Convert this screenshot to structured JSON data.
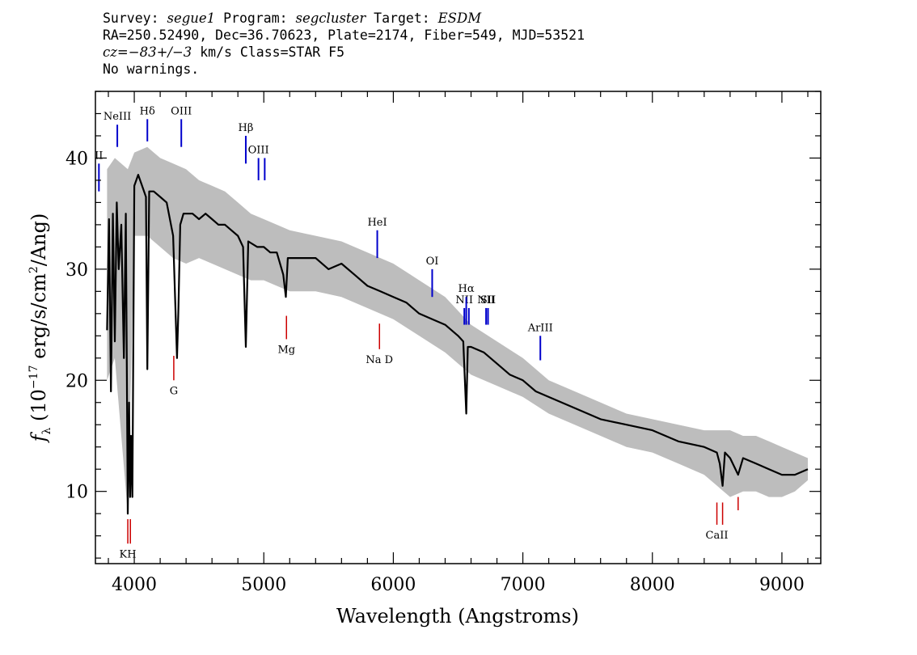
{
  "header": {
    "line1": {
      "survey_label": "Survey: ",
      "survey": "segue1",
      "program_label": " Program: ",
      "program": "segcluster",
      "target_label": " Target: ",
      "target": "ESDM"
    },
    "line2": "RA=250.52490, Dec=36.70623, Plate=2174, Fiber=549, MJD=53521",
    "line3": {
      "cz": "cz=−83+/−3",
      "rest": " km/s Class=STAR F5"
    },
    "line4": "No warnings."
  },
  "chart_data": {
    "type": "line",
    "xlabel": "Wavelength (Angstroms)",
    "ylabel": "f_λ (10^-17 erg/s/cm^2/Ang)",
    "xlim": [
      3700,
      9300
    ],
    "ylim": [
      3.5,
      46
    ],
    "x_ticks": [
      4000,
      5000,
      6000,
      7000,
      8000,
      9000
    ],
    "y_ticks": [
      10,
      20,
      30,
      40
    ],
    "series": [
      {
        "role": "flux",
        "color": "#000000",
        "x": [
          3790,
          3805,
          3820,
          3835,
          3850,
          3865,
          3880,
          3900,
          3920,
          3935,
          3950,
          3960,
          3968,
          3975,
          3985,
          4000,
          4030,
          4060,
          4090,
          4101,
          4115,
          4150,
          4200,
          4250,
          4300,
          4330,
          4340,
          4355,
          4380,
          4450,
          4500,
          4550,
          4600,
          4650,
          4700,
          4750,
          4800,
          4840,
          4861,
          4880,
          4950,
          5000,
          5050,
          5100,
          5150,
          5170,
          5185,
          5200,
          5250,
          5300,
          5400,
          5500,
          5600,
          5700,
          5800,
          5900,
          6000,
          6100,
          6200,
          6300,
          6400,
          6500,
          6540,
          6563,
          6575,
          6600,
          6700,
          6800,
          6900,
          7000,
          7100,
          7200,
          7400,
          7600,
          7800,
          8000,
          8200,
          8400,
          8498,
          8520,
          8542,
          8560,
          8600,
          8662,
          8700,
          8800,
          8900,
          9000,
          9100,
          9200
        ],
        "values": [
          24.5,
          34.5,
          19,
          35,
          23.5,
          36,
          30,
          34,
          22,
          35,
          8,
          18,
          9.5,
          15,
          9.5,
          37.5,
          38.5,
          37.5,
          36.5,
          21,
          37,
          37,
          36.5,
          36,
          33,
          22,
          26,
          34,
          35,
          35,
          34.5,
          35,
          34.5,
          34,
          34,
          33.5,
          33,
          32,
          23,
          32.5,
          32,
          32,
          31.5,
          31.5,
          29.5,
          27.5,
          31,
          31,
          31,
          31,
          31,
          30,
          30.5,
          29.5,
          28.5,
          28,
          27.5,
          27,
          26,
          25.5,
          25,
          24,
          23.5,
          17,
          23,
          23,
          22.5,
          21.5,
          20.5,
          20,
          19,
          18.5,
          17.5,
          16.5,
          16,
          15.5,
          14.5,
          14,
          13.5,
          12.5,
          10.5,
          13.5,
          13,
          11.5,
          13,
          12.5,
          12,
          11.5,
          11.5,
          12
        ]
      },
      {
        "role": "error_envelope",
        "color": "#bdbdbd",
        "x": [
          3790,
          3850,
          3950,
          4000,
          4100,
          4200,
          4300,
          4400,
          4500,
          4600,
          4700,
          4800,
          4900,
          5000,
          5100,
          5200,
          5400,
          5600,
          5800,
          6000,
          6200,
          6400,
          6600,
          6800,
          7000,
          7200,
          7400,
          7600,
          7800,
          8000,
          8200,
          8400,
          8600,
          8700,
          8800,
          8900,
          9000,
          9100,
          9200
        ],
        "upper": [
          39,
          40,
          39,
          40.5,
          41,
          40,
          39.5,
          39,
          38,
          37.5,
          37,
          36,
          35,
          34.5,
          34,
          33.5,
          33,
          32.5,
          31.5,
          30.5,
          29,
          27.5,
          25,
          23.5,
          22,
          20,
          19,
          18,
          17,
          16.5,
          16,
          15.5,
          15.5,
          15,
          15,
          14.5,
          14,
          13.5,
          13
        ],
        "lower": [
          20,
          22,
          8,
          33,
          33,
          32,
          31,
          30.5,
          31,
          30.5,
          30,
          29.5,
          29,
          29,
          28.5,
          28,
          28,
          27.5,
          26.5,
          25.5,
          24,
          22.5,
          20.5,
          19.5,
          18.5,
          17,
          16,
          15,
          14,
          13.5,
          12.5,
          11.5,
          9.5,
          10,
          10,
          9.5,
          9.5,
          10,
          11
        ]
      }
    ],
    "emission_lines": [
      {
        "label": "II",
        "wavelength": 3727,
        "y_top": 39.5,
        "y_bottom": 37
      },
      {
        "label": "NeIII",
        "wavelength": 3869,
        "y_top": 43,
        "y_bottom": 41
      },
      {
        "label": "Hδ",
        "wavelength": 4101,
        "y_top": 43.5,
        "y_bottom": 41.5
      },
      {
        "label": "OIII",
        "wavelength": 4363,
        "y_top": 43.5,
        "y_bottom": 41
      },
      {
        "label": "Hβ",
        "wavelength": 4861,
        "y_top": 42,
        "y_bottom": 39.5
      },
      {
        "label": "OIII",
        "wavelength": 4959,
        "y_top": 40,
        "y_bottom": 38
      },
      {
        "label": "",
        "wavelength": 5007,
        "y_top": 40,
        "y_bottom": 38
      },
      {
        "label": "HeI",
        "wavelength": 5876,
        "y_top": 33.5,
        "y_bottom": 31
      },
      {
        "label": "OI",
        "wavelength": 6300,
        "y_top": 30,
        "y_bottom": 27.5
      },
      {
        "label": "NII",
        "wavelength": 6548,
        "y_top": 26.5,
        "y_bottom": 25
      },
      {
        "label": "Hα",
        "wavelength": 6563,
        "y_top": 27.5,
        "y_bottom": 25
      },
      {
        "label": "",
        "wavelength": 6583,
        "y_top": 26.5,
        "y_bottom": 25
      },
      {
        "label": "NII",
        "wavelength": 6716,
        "y_top": 26.5,
        "y_bottom": 25
      },
      {
        "label": "SII",
        "wavelength": 6731,
        "y_top": 26.5,
        "y_bottom": 25
      },
      {
        "label": "ArIII",
        "wavelength": 7135,
        "y_top": 24,
        "y_bottom": 21.8
      }
    ],
    "absorption_lines": [
      {
        "label": "KH",
        "wavelength": 3950,
        "y_top": 7.5,
        "y_bottom": 5.3
      },
      {
        "label": "",
        "wavelength": 3970,
        "y_top": 7.5,
        "y_bottom": 5.3
      },
      {
        "label": "G",
        "wavelength": 4305,
        "y_top": 22.2,
        "y_bottom": 20
      },
      {
        "label": "Mg",
        "wavelength": 5175,
        "y_top": 25.8,
        "y_bottom": 23.7
      },
      {
        "label": "Na D",
        "wavelength": 5893,
        "y_top": 25.1,
        "y_bottom": 22.8
      },
      {
        "label": "CaII",
        "wavelength": 8498,
        "y_top": 9,
        "y_bottom": 7
      },
      {
        "label": "",
        "wavelength": 8542,
        "y_top": 9,
        "y_bottom": 7
      },
      {
        "label": "",
        "wavelength": 8662,
        "y_top": 9.5,
        "y_bottom": 8.3
      }
    ],
    "colors": {
      "emission": "#0000cc",
      "absorption": "#cc0000",
      "flux": "#000000",
      "error": "#bdbdbd"
    }
  }
}
